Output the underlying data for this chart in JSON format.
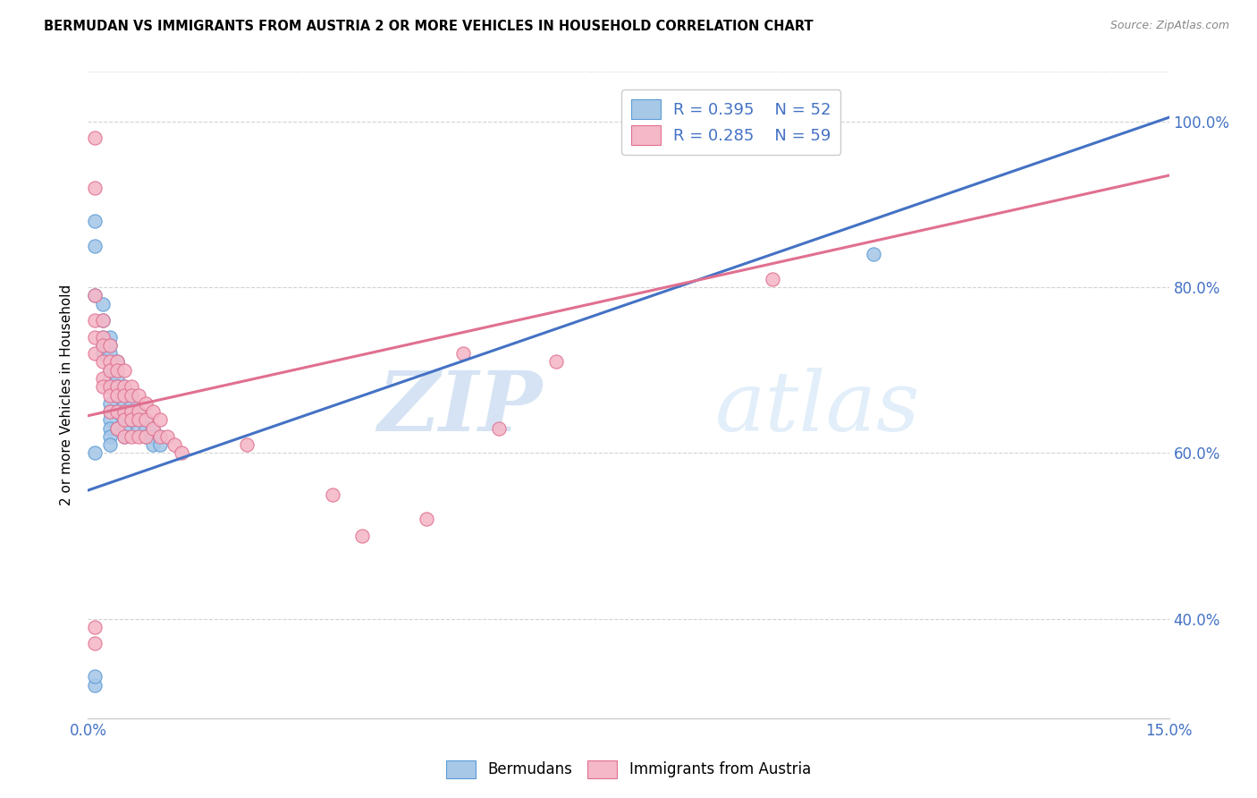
{
  "title": "BERMUDAN VS IMMIGRANTS FROM AUSTRIA 2 OR MORE VEHICLES IN HOUSEHOLD CORRELATION CHART",
  "source": "Source: ZipAtlas.com",
  "ylabel_label": "2 or more Vehicles in Household",
  "xlim": [
    0.0,
    0.15
  ],
  "ylim": [
    0.28,
    1.06
  ],
  "blue_color": "#a8c8e8",
  "pink_color": "#f4b8c8",
  "blue_edge": "#5b9bd5",
  "pink_edge": "#e07090",
  "line_blue": "#4472c4",
  "line_pink": "#e07090",
  "text_blue": "#4472c4",
  "watermark_zip": "ZIP",
  "watermark_atlas": "atlas",
  "bermudans_x": [
    0.001,
    0.001,
    0.001,
    0.002,
    0.002,
    0.002,
    0.002,
    0.002,
    0.003,
    0.003,
    0.003,
    0.003,
    0.003,
    0.003,
    0.003,
    0.003,
    0.003,
    0.003,
    0.003,
    0.003,
    0.004,
    0.004,
    0.004,
    0.004,
    0.004,
    0.004,
    0.005,
    0.005,
    0.005,
    0.005,
    0.005,
    0.005,
    0.005,
    0.006,
    0.006,
    0.006,
    0.006,
    0.007,
    0.007,
    0.007,
    0.008,
    0.008,
    0.008,
    0.009,
    0.009,
    0.009,
    0.01,
    0.01,
    0.001,
    0.001,
    0.109,
    0.001
  ],
  "bermudans_y": [
    0.88,
    0.85,
    0.79,
    0.78,
    0.76,
    0.74,
    0.73,
    0.72,
    0.74,
    0.73,
    0.72,
    0.7,
    0.69,
    0.68,
    0.66,
    0.65,
    0.64,
    0.63,
    0.62,
    0.61,
    0.71,
    0.69,
    0.68,
    0.67,
    0.65,
    0.63,
    0.68,
    0.67,
    0.66,
    0.65,
    0.64,
    0.63,
    0.62,
    0.67,
    0.66,
    0.65,
    0.64,
    0.65,
    0.64,
    0.63,
    0.64,
    0.63,
    0.62,
    0.63,
    0.62,
    0.61,
    0.62,
    0.61,
    0.32,
    0.33,
    0.84,
    0.6
  ],
  "austria_x": [
    0.001,
    0.001,
    0.001,
    0.001,
    0.001,
    0.001,
    0.002,
    0.002,
    0.002,
    0.002,
    0.002,
    0.002,
    0.003,
    0.003,
    0.003,
    0.003,
    0.003,
    0.003,
    0.004,
    0.004,
    0.004,
    0.004,
    0.004,
    0.004,
    0.005,
    0.005,
    0.005,
    0.005,
    0.005,
    0.005,
    0.006,
    0.006,
    0.006,
    0.006,
    0.006,
    0.007,
    0.007,
    0.007,
    0.007,
    0.008,
    0.008,
    0.008,
    0.009,
    0.009,
    0.01,
    0.01,
    0.011,
    0.012,
    0.013,
    0.001,
    0.001,
    0.022,
    0.034,
    0.038,
    0.047,
    0.052,
    0.057,
    0.065,
    0.095
  ],
  "austria_y": [
    0.98,
    0.92,
    0.79,
    0.76,
    0.74,
    0.72,
    0.76,
    0.74,
    0.73,
    0.71,
    0.69,
    0.68,
    0.73,
    0.71,
    0.7,
    0.68,
    0.67,
    0.65,
    0.71,
    0.7,
    0.68,
    0.67,
    0.65,
    0.63,
    0.7,
    0.68,
    0.67,
    0.65,
    0.64,
    0.62,
    0.68,
    0.67,
    0.65,
    0.64,
    0.62,
    0.67,
    0.65,
    0.64,
    0.62,
    0.66,
    0.64,
    0.62,
    0.65,
    0.63,
    0.64,
    0.62,
    0.62,
    0.61,
    0.6,
    0.37,
    0.39,
    0.61,
    0.55,
    0.5,
    0.52,
    0.72,
    0.63,
    0.71,
    0.81
  ],
  "blue_trend_x": [
    0.0,
    0.15
  ],
  "blue_trend_y": [
    0.555,
    1.005
  ],
  "pink_trend_x": [
    0.0,
    0.15
  ],
  "pink_trend_y": [
    0.645,
    0.935
  ]
}
